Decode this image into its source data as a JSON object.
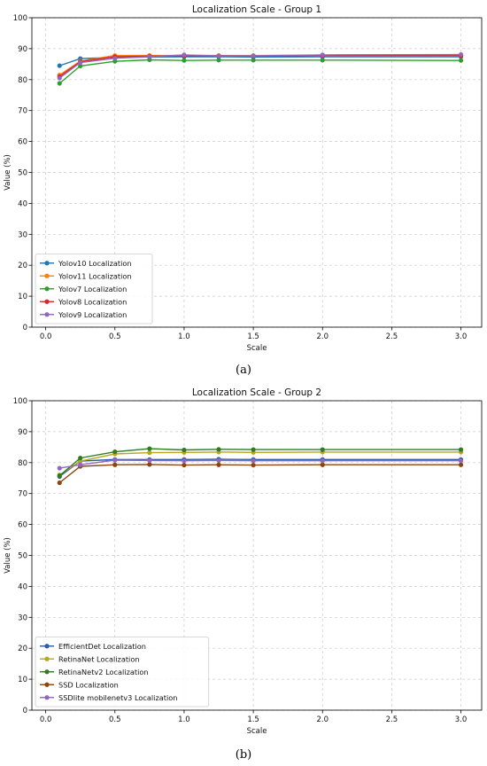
{
  "chart_data": [
    {
      "type": "line",
      "title": "Localization Scale - Group 1",
      "xlabel": "Scale",
      "ylabel": "Value (%)",
      "xlim": [
        -0.1,
        3.15
      ],
      "ylim": [
        0,
        100
      ],
      "xticks": [
        0.0,
        0.5,
        1.0,
        1.5,
        2.0,
        2.5,
        3.0
      ],
      "xtick_labels": [
        "0.0",
        "0.5",
        "1.0",
        "1.5",
        "2.0",
        "2.5",
        "3.0"
      ],
      "yticks": [
        0,
        10,
        20,
        30,
        40,
        50,
        60,
        70,
        80,
        90,
        100
      ],
      "ytick_labels": [
        "0",
        "10",
        "20",
        "30",
        "40",
        "50",
        "60",
        "70",
        "80",
        "90",
        "100"
      ],
      "grid": true,
      "legend_position": "lower-left",
      "x": [
        0.1,
        0.25,
        0.5,
        0.75,
        1.0,
        1.25,
        1.5,
        2.0,
        3.0
      ],
      "series": [
        {
          "name": "Yolov10 Localization",
          "color": "#1f77b4",
          "values": [
            84.5,
            86.8,
            87.2,
            87.3,
            87.4,
            87.4,
            87.3,
            87.4,
            87.4
          ]
        },
        {
          "name": "Yolov11 Localization",
          "color": "#ff7f0e",
          "values": [
            81.5,
            86.0,
            87.8,
            87.8,
            87.8,
            87.8,
            87.8,
            87.9,
            87.9
          ]
        },
        {
          "name": "Yolov7 Localization",
          "color": "#2ca02c",
          "values": [
            78.8,
            84.4,
            85.9,
            86.4,
            86.2,
            86.3,
            86.3,
            86.3,
            86.2
          ]
        },
        {
          "name": "Yolov8  Localization",
          "color": "#d62728",
          "values": [
            81.0,
            85.8,
            87.4,
            87.6,
            87.7,
            87.7,
            87.6,
            87.8,
            87.8
          ]
        },
        {
          "name": "Yolov9 Localization",
          "color": "#9467bd",
          "values": [
            80.5,
            85.5,
            86.9,
            87.4,
            88.0,
            87.7,
            87.7,
            88.0,
            88.1
          ]
        }
      ]
    },
    {
      "type": "line",
      "title": "Localization Scale - Group 2",
      "xlabel": "Scale",
      "ylabel": "Value (%)",
      "xlim": [
        -0.1,
        3.15
      ],
      "ylim": [
        0,
        100
      ],
      "xticks": [
        0.0,
        0.5,
        1.0,
        1.5,
        2.0,
        2.5,
        3.0
      ],
      "xtick_labels": [
        "0.0",
        "0.5",
        "1.0",
        "1.5",
        "2.0",
        "2.5",
        "3.0"
      ],
      "yticks": [
        0,
        10,
        20,
        30,
        40,
        50,
        60,
        70,
        80,
        90,
        100
      ],
      "ytick_labels": [
        "0",
        "10",
        "20",
        "30",
        "40",
        "50",
        "60",
        "70",
        "80",
        "90",
        "100"
      ],
      "grid": true,
      "legend_position": "lower-left",
      "x": [
        0.1,
        0.25,
        0.5,
        0.75,
        1.0,
        1.25,
        1.5,
        2.0,
        3.0
      ],
      "series": [
        {
          "name": "EfficientDet Localization",
          "color": "#2a5caa",
          "values": [
            75.5,
            80.5,
            81.0,
            81.0,
            81.0,
            81.1,
            81.0,
            81.0,
            81.0
          ]
        },
        {
          "name": "RetinaNet Localization",
          "color": "#b5a81a",
          "values": [
            76.0,
            80.5,
            82.8,
            83.2,
            83.3,
            83.4,
            83.3,
            83.4,
            83.4
          ]
        },
        {
          "name": "RetinaNetv2 Localization",
          "color": "#2e7d1e",
          "values": [
            75.8,
            81.5,
            83.5,
            84.5,
            84.1,
            84.3,
            84.2,
            84.2,
            84.2
          ]
        },
        {
          "name": "SSD Localization",
          "color": "#8b4513",
          "values": [
            73.5,
            78.8,
            79.3,
            79.4,
            79.2,
            79.3,
            79.2,
            79.3,
            79.3
          ]
        },
        {
          "name": "SSDlite  mobilenetv3 Localization",
          "color": "#9467bd",
          "values": [
            78.2,
            79.3,
            80.8,
            80.7,
            80.6,
            80.7,
            80.6,
            80.6,
            80.6
          ]
        }
      ]
    }
  ],
  "captions": [
    "(a)",
    "(b)"
  ]
}
